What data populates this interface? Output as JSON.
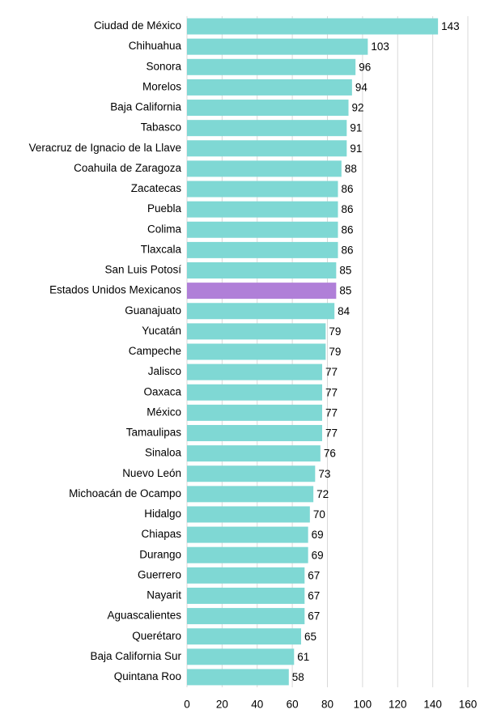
{
  "chart_data": {
    "type": "barh",
    "categories": [
      "Ciudad de México",
      "Chihuahua",
      "Sonora",
      "Morelos",
      "Baja California",
      "Tabasco",
      "Veracruz de Ignacio de la Llave",
      "Coahuila de Zaragoza",
      "Zacatecas",
      "Puebla",
      "Colima",
      "Tlaxcala",
      "San Luis Potosí",
      "Estados Unidos Mexicanos",
      "Guanajuato",
      "Yucatán",
      "Campeche",
      "Jalisco",
      "Oaxaca",
      "México",
      "Tamaulipas",
      "Sinaloa",
      "Nuevo León",
      "Michoacán de Ocampo",
      "Hidalgo",
      "Chiapas",
      "Durango",
      "Guerrero",
      "Nayarit",
      "Aguascalientes",
      "Querétaro",
      "Baja California Sur",
      "Quintana Roo"
    ],
    "values": [
      143,
      103,
      96,
      94,
      92,
      91,
      91,
      88,
      86,
      86,
      86,
      86,
      85,
      85,
      84,
      79,
      79,
      77,
      77,
      77,
      77,
      76,
      73,
      72,
      70,
      69,
      69,
      67,
      67,
      67,
      65,
      61,
      58
    ],
    "colors": [
      "#7fd8d4",
      "#7fd8d4",
      "#7fd8d4",
      "#7fd8d4",
      "#7fd8d4",
      "#7fd8d4",
      "#7fd8d4",
      "#7fd8d4",
      "#7fd8d4",
      "#7fd8d4",
      "#7fd8d4",
      "#7fd8d4",
      "#7fd8d4",
      "#b07fd8",
      "#7fd8d4",
      "#7fd8d4",
      "#7fd8d4",
      "#7fd8d4",
      "#7fd8d4",
      "#7fd8d4",
      "#7fd8d4",
      "#7fd8d4",
      "#7fd8d4",
      "#7fd8d4",
      "#7fd8d4",
      "#7fd8d4",
      "#7fd8d4",
      "#7fd8d4",
      "#7fd8d4",
      "#7fd8d4",
      "#7fd8d4",
      "#7fd8d4",
      "#7fd8d4"
    ],
    "xlim": [
      0,
      160
    ],
    "xticks": [
      0,
      20,
      40,
      60,
      80,
      100,
      120,
      140,
      160
    ],
    "grid": true
  }
}
